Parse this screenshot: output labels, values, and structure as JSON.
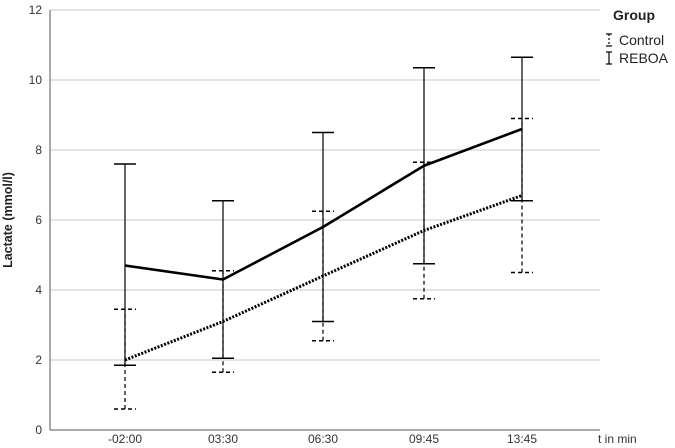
{
  "chart_data": {
    "type": "line",
    "xlabel": "t in min",
    "ylabel": "Lactate (mmol/l)",
    "ylim": [
      0,
      12
    ],
    "yticks": [
      0,
      2,
      4,
      6,
      8,
      10,
      12
    ],
    "grid": "horizontal",
    "categories": [
      "-02:00",
      "03:30",
      "06:30",
      "09:45",
      "13:45"
    ],
    "legend": {
      "title": "Group",
      "placement": "top-right"
    },
    "series": [
      {
        "name": "Control",
        "style": "dotted",
        "color": "#000000",
        "values": [
          2.0,
          3.1,
          4.4,
          5.7,
          6.7
        ],
        "ci_low": [
          0.6,
          1.65,
          2.55,
          3.75,
          4.5
        ],
        "ci_high": [
          3.45,
          4.55,
          6.25,
          7.65,
          8.9
        ]
      },
      {
        "name": "REBOA",
        "style": "solid",
        "color": "#000000",
        "values": [
          4.7,
          4.3,
          5.8,
          7.55,
          8.6
        ],
        "ci_low": [
          1.85,
          2.05,
          3.1,
          4.75,
          6.55
        ],
        "ci_high": [
          7.6,
          6.55,
          8.5,
          10.35,
          10.65
        ]
      }
    ]
  }
}
